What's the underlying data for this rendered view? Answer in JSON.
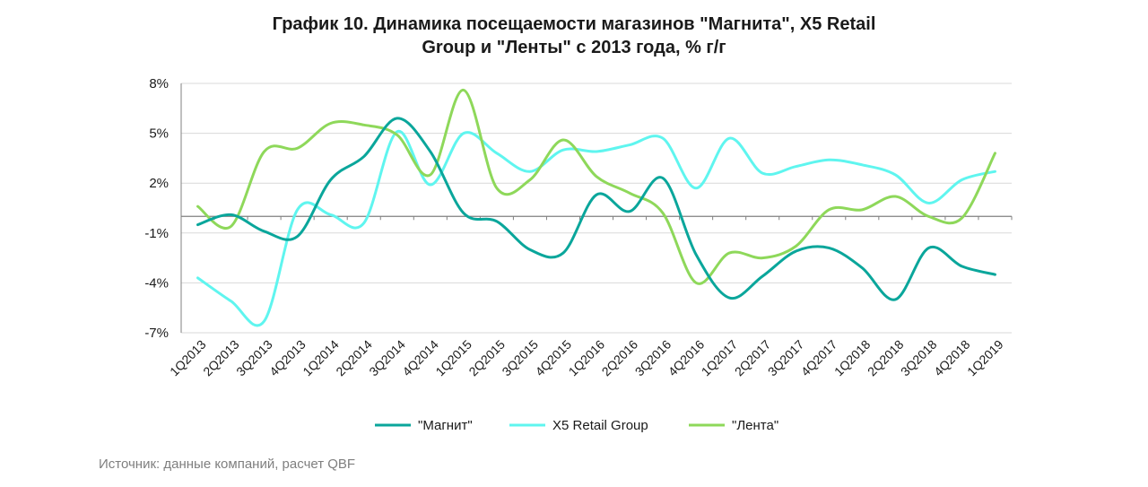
{
  "title_line1": "График 10. Динамика посещаемости магазинов \"Магнита\", X5 Retail",
  "title_line2": "Group и \"Ленты\" с 2013 года, % г/г",
  "source": "Источник: данные компаний, расчет QBF",
  "colors": {
    "magnit": "#0aa69b",
    "x5": "#5ff5ef",
    "lenta": "#8ed85a",
    "grid": "#d9d9d9",
    "axis": "#808080"
  },
  "chart_data": {
    "type": "line",
    "categories": [
      "1Q2013",
      "2Q2013",
      "3Q2013",
      "4Q2013",
      "1Q2014",
      "2Q2014",
      "3Q2014",
      "4Q2014",
      "1Q2015",
      "2Q2015",
      "3Q2015",
      "4Q2015",
      "1Q2016",
      "2Q2016",
      "3Q2016",
      "4Q2016",
      "1Q2017",
      "2Q2017",
      "3Q2017",
      "4Q2017",
      "1Q2018",
      "2Q2018",
      "3Q2018",
      "4Q2018",
      "1Q2019"
    ],
    "y_ticks": [
      -7,
      -4,
      -1,
      2,
      5,
      8
    ],
    "y_tick_labels": [
      "-7%",
      "-4%",
      "-1%",
      "2%",
      "5%",
      "8%"
    ],
    "ylim": [
      -7,
      8
    ],
    "grid": true,
    "legend_position": "bottom",
    "series": [
      {
        "name": "\"Магнит\"",
        "color_key": "magnit",
        "values": [
          -0.5,
          0.1,
          -0.9,
          -1.2,
          2.2,
          3.6,
          5.9,
          3.9,
          0.2,
          -0.3,
          -2.0,
          -2.2,
          1.3,
          0.3,
          2.3,
          -2.3,
          -4.9,
          -3.6,
          -2.1,
          -1.9,
          -3.1,
          -5.0,
          -1.9,
          -3.0,
          -3.5
        ]
      },
      {
        "name": "X5 Retail Group",
        "color_key": "x5",
        "values": [
          -3.7,
          -5.1,
          -6.3,
          0.4,
          0.1,
          -0.4,
          5.1,
          1.9,
          5.0,
          3.8,
          2.7,
          4.0,
          3.9,
          4.3,
          4.7,
          1.7,
          4.7,
          2.6,
          3.0,
          3.4,
          3.1,
          2.5,
          0.8,
          2.2,
          2.7
        ]
      },
      {
        "name": "\"Лента\"",
        "color_key": "lenta",
        "values": [
          0.6,
          -0.6,
          3.9,
          4.1,
          5.6,
          5.5,
          4.9,
          2.5,
          7.6,
          1.7,
          2.2,
          4.6,
          2.4,
          1.4,
          0.2,
          -4.0,
          -2.2,
          -2.5,
          -1.8,
          0.4,
          0.4,
          1.2,
          0.0,
          -0.1,
          3.8
        ]
      }
    ]
  }
}
